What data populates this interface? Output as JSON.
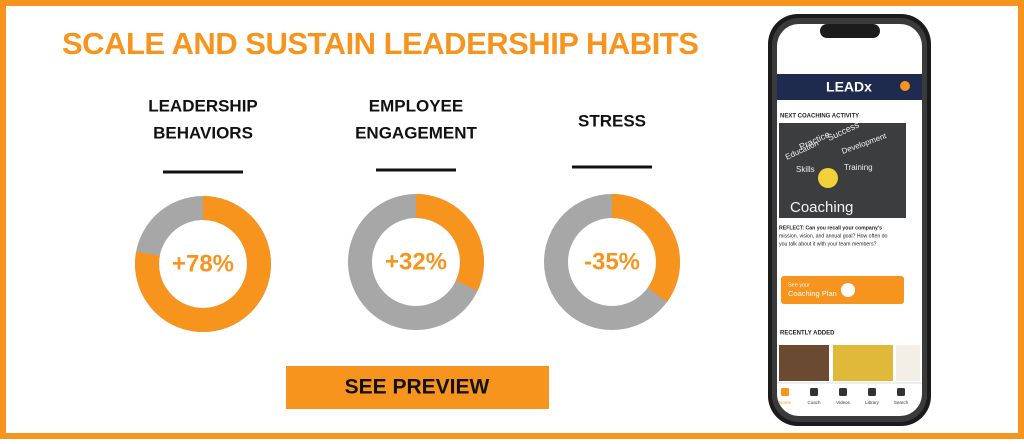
{
  "banner": {
    "title": "SCALE AND SUSTAIN LEADERSHIP HABITS",
    "stats": [
      {
        "label": [
          "LEADERSHIP",
          "BEHAVIORS"
        ],
        "value": 78,
        "value_label": "+78%"
      },
      {
        "label": [
          "EMPLOYEE",
          "ENGAGEMENT"
        ],
        "value": 32,
        "value_label": "+32%"
      },
      {
        "label": [
          "STRESS"
        ],
        "value": -35,
        "value_label": "-35%"
      }
    ],
    "button": "SEE PREVIEW"
  },
  "phone": {
    "brand": "LEADx",
    "section_next": "NEXT COACHING ACTIVITY",
    "image_words": [
      "Practice",
      "Success",
      "Education",
      "Development",
      "Skills",
      "Training"
    ],
    "image_title": "Coaching",
    "reflect": [
      "REFLECT: Can you recall your company's",
      "mission, vision, and annual goal? How often do",
      "you talk about it with your team members?"
    ],
    "plan_button": [
      "See your",
      "Coaching Plan"
    ],
    "section_recent": "RECENTLY ADDED",
    "nav": [
      "Home",
      "Coach",
      "Videos",
      "Library",
      "Search"
    ]
  }
}
